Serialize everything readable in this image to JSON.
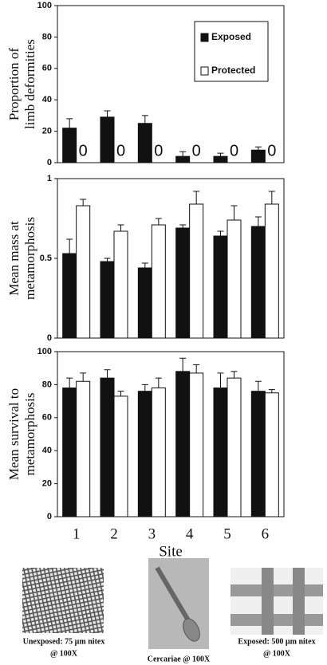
{
  "chart_data": [
    {
      "type": "bar",
      "y_label": [
        "Proportion of",
        "limb deformities"
      ],
      "ylim": [
        0,
        100
      ],
      "yticks": [
        0,
        20,
        40,
        60,
        80,
        100
      ],
      "legend": "upper right",
      "series": [
        {
          "name": "Exposed",
          "color": "#111111",
          "values": [
            22,
            29,
            25,
            4,
            4,
            8
          ],
          "errors": [
            6,
            4,
            5,
            3,
            2,
            2
          ]
        },
        {
          "name": "Protected",
          "color": "#ffffff",
          "values": [
            0,
            0,
            0,
            0,
            0,
            0
          ],
          "labels": true
        }
      ]
    },
    {
      "type": "bar",
      "y_label": [
        "Mean mass at",
        "metamorphosis"
      ],
      "ylim": [
        0,
        1
      ],
      "yticks": [
        0,
        0.5,
        1
      ],
      "series": [
        {
          "name": "Exposed",
          "color": "#111111",
          "values": [
            0.53,
            0.48,
            0.44,
            0.69,
            0.64,
            0.7
          ],
          "errors": [
            0.09,
            0.02,
            0.03,
            0.02,
            0.03,
            0.06
          ]
        },
        {
          "name": "Protected",
          "color": "#ffffff",
          "values": [
            0.83,
            0.67,
            0.71,
            0.84,
            0.74,
            0.84
          ],
          "errors": [
            0.04,
            0.04,
            0.04,
            0.08,
            0.09,
            0.08
          ]
        }
      ]
    },
    {
      "type": "bar",
      "y_label": [
        "Mean survival to",
        "metamorphosis"
      ],
      "ylim": [
        0,
        100
      ],
      "yticks": [
        0,
        20,
        40,
        60,
        80,
        100
      ],
      "x_label": "Site",
      "categories": [
        "1",
        "2",
        "3",
        "4",
        "5",
        "6"
      ],
      "series": [
        {
          "name": "Exposed",
          "color": "#111111",
          "values": [
            78,
            84,
            76,
            88,
            78,
            76
          ],
          "errors": [
            6,
            5,
            4,
            8,
            9,
            6
          ]
        },
        {
          "name": "Protected",
          "color": "#ffffff",
          "values": [
            82,
            73,
            78,
            87,
            84,
            75
          ],
          "errors": [
            5,
            3,
            6,
            5,
            4,
            2
          ]
        }
      ]
    }
  ],
  "figures": [
    {
      "caption": [
        "Unexposed: 75 µm nitex",
        "@ 100X"
      ]
    },
    {
      "caption": [
        "Cercariae @ 100X"
      ]
    },
    {
      "caption": [
        "Exposed: 500 µm nitex",
        "@ 100X"
      ]
    }
  ]
}
